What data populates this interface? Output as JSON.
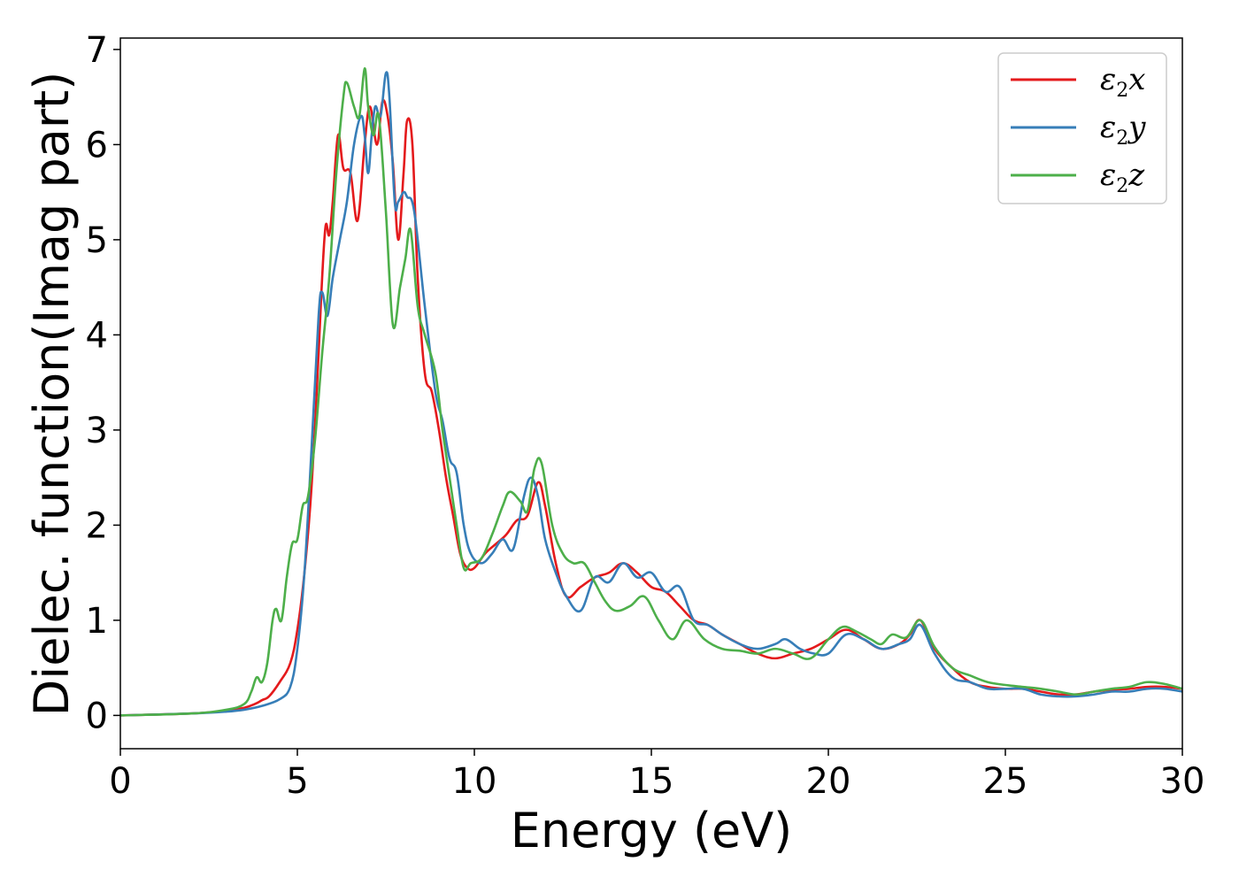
{
  "chart_data": {
    "type": "line",
    "title": "",
    "xlabel": "Energy (eV)",
    "ylabel": "Dielec. function(Imag part)",
    "xlim": [
      0,
      30
    ],
    "ylim": [
      -0.35,
      7.12
    ],
    "xticks": [
      "0",
      "5",
      "10",
      "15",
      "20",
      "25",
      "30"
    ],
    "yticks": [
      "0",
      "1",
      "2",
      "3",
      "4",
      "5",
      "6",
      "7"
    ],
    "grid": false,
    "legend_position": "top-right",
    "series": [
      {
        "name": "ε₂x",
        "color": "#e41a1c",
        "x": [
          0,
          2,
          3,
          3.5,
          3.8,
          4.0,
          4.2,
          4.5,
          4.8,
          5.0,
          5.2,
          5.4,
          5.6,
          5.7,
          5.8,
          5.9,
          6.0,
          6.15,
          6.3,
          6.5,
          6.7,
          6.9,
          7.05,
          7.25,
          7.4,
          7.55,
          7.7,
          7.85,
          8.0,
          8.1,
          8.25,
          8.4,
          8.6,
          8.8,
          9.0,
          9.2,
          9.4,
          9.6,
          9.8,
          10.0,
          10.3,
          10.6,
          10.9,
          11.2,
          11.5,
          11.8,
          12.0,
          12.3,
          12.6,
          13.0,
          13.4,
          13.8,
          14.2,
          14.6,
          15.0,
          15.4,
          15.8,
          16.2,
          16.6,
          17.0,
          17.5,
          18.0,
          18.5,
          19.0,
          19.5,
          20.0,
          20.5,
          21.0,
          21.5,
          22.0,
          22.3,
          22.6,
          23.0,
          23.5,
          24.0,
          24.5,
          25.0,
          25.5,
          26.0,
          26.5,
          27.0,
          27.5,
          28.0,
          28.5,
          29.0,
          29.5,
          30.0
        ],
        "values": [
          0,
          0.02,
          0.05,
          0.08,
          0.12,
          0.16,
          0.2,
          0.35,
          0.55,
          0.9,
          1.5,
          2.4,
          3.8,
          4.6,
          5.15,
          5.05,
          5.4,
          6.1,
          5.75,
          5.7,
          5.2,
          6.0,
          6.4,
          6.0,
          6.45,
          6.3,
          5.8,
          5.0,
          5.7,
          6.25,
          6.0,
          4.6,
          3.6,
          3.4,
          3.0,
          2.5,
          2.1,
          1.7,
          1.55,
          1.55,
          1.7,
          1.8,
          1.9,
          2.05,
          2.1,
          2.45,
          2.2,
          1.6,
          1.25,
          1.35,
          1.45,
          1.5,
          1.6,
          1.5,
          1.35,
          1.3,
          1.15,
          1.0,
          0.95,
          0.85,
          0.75,
          0.65,
          0.6,
          0.65,
          0.7,
          0.8,
          0.9,
          0.8,
          0.7,
          0.75,
          0.85,
          1.0,
          0.7,
          0.5,
          0.35,
          0.3,
          0.28,
          0.28,
          0.25,
          0.22,
          0.22,
          0.25,
          0.27,
          0.28,
          0.3,
          0.3,
          0.28
        ]
      },
      {
        "name": "ε₂y",
        "color": "#377eb8",
        "x": [
          0,
          2,
          3,
          3.5,
          4.0,
          4.5,
          4.8,
          5.0,
          5.2,
          5.4,
          5.6,
          5.7,
          5.85,
          6.0,
          6.2,
          6.4,
          6.6,
          6.8,
          6.9,
          7.0,
          7.1,
          7.2,
          7.35,
          7.5,
          7.6,
          7.75,
          7.85,
          8.0,
          8.1,
          8.3,
          8.6,
          8.9,
          9.1,
          9.3,
          9.5,
          9.7,
          9.9,
          10.2,
          10.5,
          10.8,
          11.1,
          11.4,
          11.6,
          11.8,
          12.0,
          12.3,
          12.6,
          13.0,
          13.4,
          13.8,
          14.2,
          14.6,
          15.0,
          15.4,
          15.8,
          16.2,
          16.6,
          17.0,
          17.5,
          18.0,
          18.5,
          18.8,
          19.2,
          19.6,
          20.0,
          20.5,
          21.0,
          21.5,
          22.0,
          22.3,
          22.6,
          23.0,
          23.5,
          24.0,
          24.5,
          25.0,
          25.5,
          26.0,
          26.5,
          27.0,
          27.5,
          28.0,
          28.5,
          29.0,
          29.5,
          30.0
        ],
        "values": [
          0,
          0.02,
          0.04,
          0.06,
          0.1,
          0.17,
          0.3,
          0.7,
          1.5,
          2.8,
          4.2,
          4.45,
          4.2,
          4.6,
          5.0,
          5.4,
          6.0,
          6.3,
          6.1,
          5.7,
          6.1,
          6.4,
          6.3,
          6.75,
          6.5,
          5.4,
          5.4,
          5.5,
          5.45,
          5.3,
          4.3,
          3.4,
          3.1,
          2.7,
          2.55,
          2.0,
          1.7,
          1.6,
          1.7,
          1.85,
          1.75,
          2.3,
          2.5,
          2.3,
          1.85,
          1.5,
          1.25,
          1.1,
          1.45,
          1.4,
          1.6,
          1.45,
          1.5,
          1.3,
          1.35,
          1.0,
          0.95,
          0.85,
          0.75,
          0.7,
          0.75,
          0.8,
          0.7,
          0.65,
          0.65,
          0.85,
          0.8,
          0.7,
          0.75,
          0.8,
          0.95,
          0.65,
          0.4,
          0.35,
          0.28,
          0.28,
          0.28,
          0.22,
          0.2,
          0.2,
          0.22,
          0.25,
          0.25,
          0.28,
          0.28,
          0.25
        ]
      },
      {
        "name": "ε₂z",
        "color": "#4daf4a",
        "x": [
          0,
          2,
          3,
          3.5,
          3.7,
          3.85,
          4.0,
          4.15,
          4.3,
          4.4,
          4.55,
          4.7,
          4.85,
          5.0,
          5.15,
          5.3,
          5.5,
          5.7,
          5.9,
          6.1,
          6.3,
          6.4,
          6.6,
          6.75,
          6.9,
          7.0,
          7.15,
          7.3,
          7.5,
          7.7,
          7.9,
          8.05,
          8.2,
          8.4,
          8.6,
          8.9,
          9.1,
          9.3,
          9.5,
          9.7,
          9.9,
          10.2,
          10.5,
          10.8,
          11.0,
          11.3,
          11.5,
          11.7,
          11.9,
          12.2,
          12.5,
          12.8,
          13.1,
          13.4,
          13.7,
          14.0,
          14.4,
          14.8,
          15.2,
          15.6,
          16.0,
          16.5,
          17.0,
          17.5,
          18.0,
          18.5,
          19.0,
          19.5,
          20.0,
          20.4,
          20.8,
          21.2,
          21.5,
          21.8,
          22.2,
          22.6,
          23.0,
          23.5,
          24.0,
          24.5,
          25.0,
          25.5,
          26.0,
          26.5,
          27.0,
          27.5,
          28.0,
          28.5,
          29.0,
          29.5,
          30.0
        ],
        "values": [
          0,
          0.02,
          0.06,
          0.12,
          0.25,
          0.4,
          0.35,
          0.55,
          1.0,
          1.12,
          1.0,
          1.45,
          1.8,
          1.85,
          2.2,
          2.3,
          2.9,
          3.8,
          4.6,
          5.7,
          6.5,
          6.65,
          6.4,
          6.3,
          6.8,
          6.4,
          6.1,
          6.3,
          5.3,
          4.1,
          4.5,
          4.8,
          5.1,
          4.3,
          4.0,
          3.6,
          3.0,
          2.5,
          2.0,
          1.55,
          1.6,
          1.65,
          1.9,
          2.2,
          2.35,
          2.25,
          2.15,
          2.6,
          2.65,
          2.0,
          1.7,
          1.6,
          1.6,
          1.4,
          1.2,
          1.1,
          1.15,
          1.25,
          1.0,
          0.8,
          1.0,
          0.8,
          0.7,
          0.68,
          0.65,
          0.7,
          0.65,
          0.6,
          0.8,
          0.93,
          0.88,
          0.8,
          0.75,
          0.85,
          0.82,
          1.0,
          0.72,
          0.5,
          0.42,
          0.35,
          0.32,
          0.3,
          0.28,
          0.25,
          0.22,
          0.25,
          0.28,
          0.3,
          0.35,
          0.33,
          0.28
        ]
      }
    ]
  }
}
